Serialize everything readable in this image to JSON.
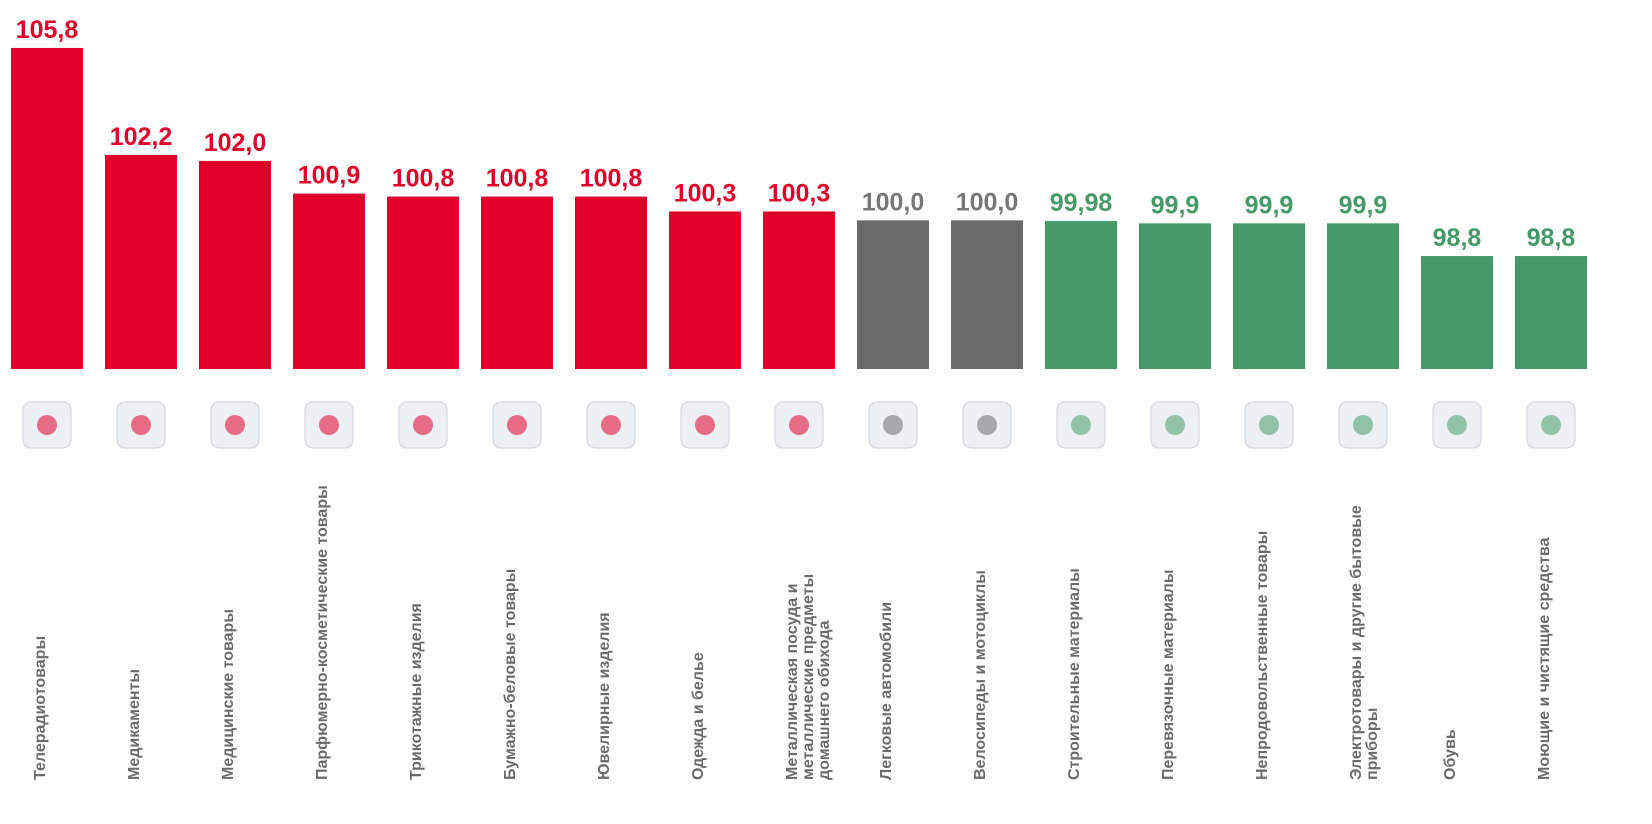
{
  "chart_data": {
    "type": "bar",
    "categories": [
      "Телерадиотовары",
      "Медикаменты",
      "Медицинские товары",
      "Парфюмерно-косметические товары",
      "Трикотажные изделия",
      "Бумажно-беловые товары",
      "Ювелирные изделия",
      "Одежда и белье",
      "Металлическая посуда и металличеcкие предметы домашнего обихода",
      "Легковые автомобили",
      "Велосипеды и мотоциклы",
      "Строительные материалы",
      "Перевязочные материалы",
      "Непродовольственные товары",
      "Электротовары и другие бытовые приборы",
      "Обувь",
      "Моющие и чистящие средства"
    ],
    "values": [
      105.8,
      102.2,
      102.0,
      100.9,
      100.8,
      100.8,
      100.8,
      100.3,
      100.3,
      100.0,
      100.0,
      99.98,
      99.9,
      99.9,
      99.9,
      98.8,
      98.8
    ],
    "value_labels": [
      "105,8",
      "102,2",
      "102,0",
      "100,9",
      "100,8",
      "100,8",
      "100,8",
      "100,3",
      "100,3",
      "100,0",
      "100,0",
      "99,98",
      "99,9",
      "99,9",
      "99,9",
      "98,8",
      "98,8"
    ],
    "colors": [
      "#e0002a",
      "#e0002a",
      "#e0002a",
      "#e0002a",
      "#e0002a",
      "#e0002a",
      "#e0002a",
      "#e0002a",
      "#e0002a",
      "#6b6b6b",
      "#6b6b6b",
      "#459a68",
      "#459a68",
      "#459a68",
      "#459a68",
      "#459a68",
      "#459a68"
    ],
    "ylim": [
      95,
      106
    ]
  }
}
